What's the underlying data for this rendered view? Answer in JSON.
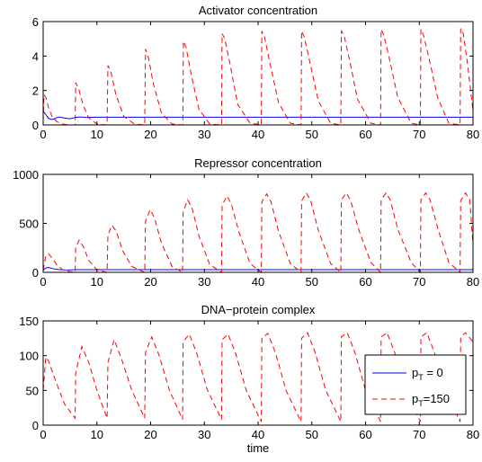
{
  "chart_data": [
    {
      "type": "line",
      "title": "Activator concentration",
      "xlim": [
        0,
        80
      ],
      "ylim": [
        0,
        6
      ],
      "xticks": [
        0,
        10,
        20,
        30,
        40,
        50,
        60,
        70,
        80
      ],
      "yticks": [
        0,
        2,
        4,
        6
      ],
      "series": [
        {
          "name": "p_T = 0",
          "color": "#0000ff",
          "style": "solid",
          "x": [
            0,
            0.5,
            1,
            1.5,
            2,
            2.5,
            3,
            4,
            5,
            6,
            7,
            8,
            10,
            20,
            40,
            60,
            80
          ],
          "y": [
            0.8,
            0.6,
            0.38,
            0.32,
            0.34,
            0.42,
            0.46,
            0.4,
            0.36,
            0.44,
            0.46,
            0.44,
            0.45,
            0.45,
            0.45,
            0.45,
            0.45
          ]
        },
        {
          "name": "p_T=150",
          "color": "#ff0000",
          "style": "dashed",
          "x": [
            0,
            0.15,
            0.5,
            1,
            1.7,
            2.5,
            3.5,
            5,
            5.95,
            6.05,
            6.6,
            7.5,
            8.5,
            10,
            11.9,
            12.05,
            12.6,
            13.5,
            15,
            17,
            18.9,
            19.05,
            19.6,
            20.5,
            22,
            24,
            26.0,
            26.1,
            26.6,
            27.5,
            29,
            31,
            33.2,
            33.3,
            33.8,
            34.8,
            36.2,
            38.5,
            40.6,
            40.7,
            41.2,
            42.2,
            43.8,
            46,
            48.0,
            48.1,
            48.6,
            49.6,
            51.2,
            53.5,
            55.4,
            55.5,
            56.0,
            57.0,
            58.5,
            61,
            62.8,
            62.9,
            63.4,
            64.4,
            66.0,
            68.5,
            70.2,
            70.3,
            70.8,
            71.8,
            73.4,
            75.5,
            77.6,
            77.7,
            78.2,
            79.0,
            80
          ],
          "y": [
            0.2,
            1.75,
            1.6,
            1.0,
            0.45,
            0.2,
            0.05,
            0.0,
            0.0,
            2.45,
            2.1,
            1.1,
            0.4,
            0.05,
            0.0,
            3.45,
            3.1,
            1.8,
            0.5,
            0.05,
            0.0,
            4.4,
            3.9,
            2.4,
            0.7,
            0.05,
            0.0,
            4.85,
            4.5,
            3.0,
            0.9,
            0.05,
            0.0,
            5.3,
            5.0,
            3.5,
            1.2,
            0.1,
            0.0,
            5.45,
            5.1,
            3.6,
            1.3,
            0.1,
            0.0,
            5.45,
            5.1,
            3.7,
            1.4,
            0.1,
            0.0,
            5.45,
            5.2,
            3.8,
            1.5,
            0.1,
            0.0,
            5.55,
            5.2,
            3.9,
            1.6,
            0.1,
            0.0,
            5.55,
            5.2,
            3.9,
            1.6,
            0.1,
            0.0,
            5.6,
            5.3,
            3.5,
            0.8
          ]
        }
      ]
    },
    {
      "type": "line",
      "title": "Repressor concentration",
      "xlim": [
        0,
        80
      ],
      "ylim": [
        0,
        1000
      ],
      "xticks": [
        0,
        10,
        20,
        30,
        40,
        50,
        60,
        70,
        80
      ],
      "yticks": [
        0,
        500,
        1000
      ],
      "series": [
        {
          "name": "p_T = 0",
          "color": "#0000ff",
          "style": "solid",
          "x": [
            0,
            0.5,
            1,
            1.5,
            2,
            3,
            4,
            5,
            6,
            8,
            10,
            20,
            40,
            60,
            80
          ],
          "y": [
            20,
            45,
            50,
            42,
            35,
            28,
            25,
            24,
            28,
            27,
            27,
            27,
            27,
            27,
            27
          ]
        },
        {
          "name": "p_T=150",
          "color": "#ff0000",
          "style": "dashed",
          "x": [
            0,
            0.5,
            1.0,
            1.6,
            2.5,
            3.5,
            5,
            5.95,
            6.05,
            6.7,
            7.5,
            8.5,
            10,
            11.9,
            12.05,
            12.8,
            13.6,
            14.8,
            16.5,
            18.9,
            19.05,
            19.9,
            20.7,
            22,
            24,
            25.95,
            26.05,
            26.9,
            27.7,
            29,
            31,
            33.2,
            33.3,
            34.2,
            35.0,
            36.5,
            38.5,
            40.6,
            40.7,
            41.6,
            42.4,
            43.8,
            46,
            48.0,
            48.1,
            49.0,
            49.8,
            51.2,
            53.5,
            55.4,
            55.5,
            56.4,
            57.2,
            58.7,
            61,
            62.8,
            62.9,
            63.8,
            64.6,
            66.0,
            68.5,
            70.2,
            70.3,
            71.2,
            72.0,
            73.5,
            75.5,
            77.6,
            77.7,
            78.6,
            79.4,
            80
          ],
          "y": [
            20,
            170,
            190,
            150,
            80,
            30,
            5,
            0,
            250,
            330,
            260,
            120,
            25,
            0,
            380,
            480,
            420,
            220,
            60,
            0,
            520,
            640,
            560,
            300,
            60,
            0,
            620,
            740,
            660,
            370,
            80,
            0,
            680,
            780,
            700,
            400,
            90,
            0,
            720,
            800,
            720,
            420,
            90,
            0,
            730,
            810,
            730,
            430,
            90,
            0,
            740,
            810,
            740,
            440,
            100,
            0,
            740,
            810,
            740,
            440,
            100,
            0,
            740,
            810,
            740,
            440,
            100,
            0,
            730,
            810,
            740,
            280
          ]
        }
      ]
    },
    {
      "type": "line",
      "title": "DNA−protein complex",
      "xlabel": "time",
      "xlim": [
        0,
        80
      ],
      "ylim": [
        0,
        150
      ],
      "xticks": [
        0,
        10,
        20,
        30,
        40,
        50,
        60,
        70,
        80
      ],
      "yticks": [
        0,
        50,
        100,
        150
      ],
      "legend_position": "lower-right",
      "series": [
        {
          "name": "p_T = 0",
          "color": "#0000ff",
          "style": "solid",
          "x": [
            0,
            80
          ],
          "y": [
            0,
            0
          ]
        },
        {
          "name": "p_T=150",
          "color": "#ff0000",
          "style": "dashed",
          "x": [
            0,
            0.5,
            1.0,
            2.5,
            4,
            5.95,
            6.05,
            7.2,
            8.5,
            10,
            11.9,
            12.05,
            13.2,
            14.6,
            16.5,
            18.9,
            19.05,
            20.2,
            21.6,
            23.5,
            25.95,
            26.05,
            27.2,
            28.6,
            30.5,
            33.2,
            33.3,
            34.4,
            35.8,
            37.8,
            40.6,
            40.7,
            41.8,
            43.2,
            45.2,
            48.0,
            48.1,
            49.2,
            50.6,
            52.6,
            55.4,
            55.5,
            56.6,
            58.0,
            60.0,
            62.8,
            62.9,
            64.0,
            65.4,
            67.4,
            70.2,
            70.3,
            71.4,
            72.8,
            74.8,
            77.6,
            77.7,
            78.6,
            80
          ],
          "y": [
            50,
            98,
            92,
            60,
            30,
            10,
            75,
            113,
            90,
            50,
            10,
            90,
            123,
            95,
            50,
            10,
            105,
            127,
            100,
            50,
            8,
            120,
            131,
            103,
            52,
            8,
            123,
            131,
            104,
            50,
            5,
            125,
            132,
            105,
            50,
            5,
            125,
            133,
            105,
            50,
            5,
            127,
            133,
            105,
            50,
            5,
            127,
            133,
            105,
            50,
            5,
            127,
            133,
            105,
            50,
            5,
            127,
            133,
            120
          ]
        }
      ]
    }
  ],
  "legend": {
    "entries": [
      {
        "label_main": "p",
        "label_sub": "T",
        "label_rest": " = 0",
        "color": "#0000ff",
        "style": "solid"
      },
      {
        "label_main": "p",
        "label_sub": "T",
        "label_rest": "=150",
        "color": "#ff0000",
        "style": "dashed"
      }
    ]
  }
}
